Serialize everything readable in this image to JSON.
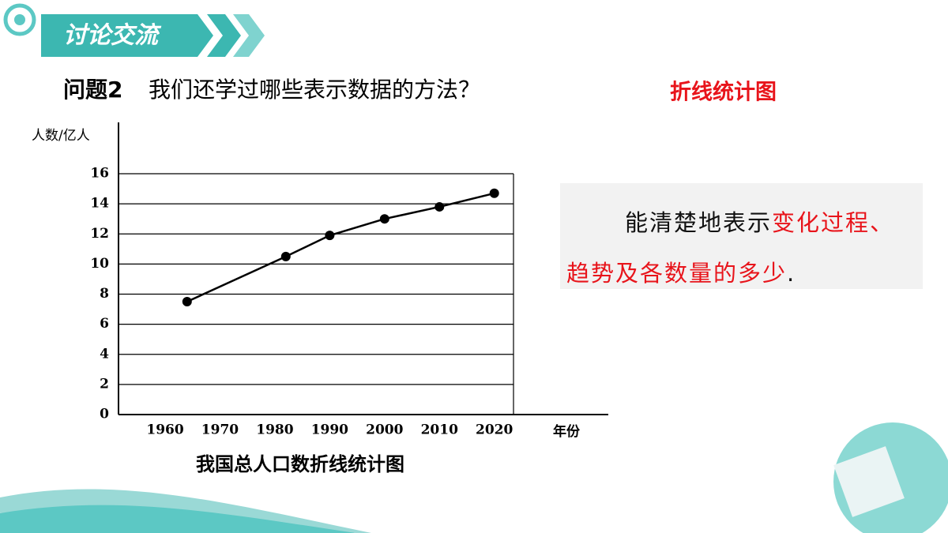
{
  "header": {
    "title": "讨论交流"
  },
  "question": {
    "label": "问题2",
    "text": "我们还学过哪些表示数据的方法？"
  },
  "answer": "折线统计图",
  "text_box": {
    "lines": [
      [
        {
          "text": "能清楚地表示",
          "color": "#111111"
        },
        {
          "text": "变化过程、",
          "color": "#e8141b"
        }
      ],
      [
        {
          "text": "趋势及各数量的多少",
          "color": "#e8141b"
        },
        {
          "text": ".",
          "color": "#111111"
        }
      ]
    ]
  },
  "chart_data": {
    "type": "line",
    "title": "我国总人口数折线统计图",
    "y_label": "人数/亿人",
    "x_label": "年份",
    "x": [
      1964,
      1982,
      1990,
      2000,
      2010,
      2020
    ],
    "values": [
      7.5,
      10.5,
      11.9,
      13.0,
      13.8,
      14.7
    ],
    "color": "#000000",
    "xlim": [
      1951.5,
      2023.5
    ],
    "xticks": [
      1960,
      1970,
      1980,
      1990,
      2000,
      2010,
      2020
    ],
    "ylim": [
      0,
      16
    ],
    "yticks": [
      0,
      2,
      4,
      6,
      8,
      10,
      12,
      14,
      16
    ],
    "grid": true
  }
}
